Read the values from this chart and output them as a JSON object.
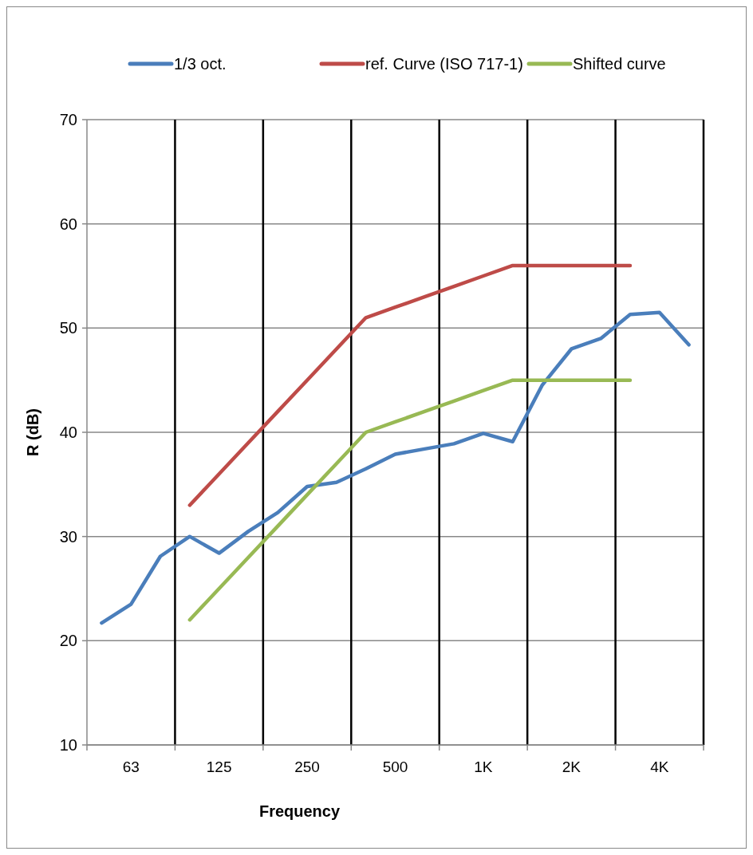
{
  "chart_data": {
    "type": "line",
    "xlabel": "Frequency",
    "ylabel": "R (dB)",
    "categories": [
      null,
      "63",
      null,
      null,
      "125",
      null,
      null,
      "250",
      null,
      null,
      "500",
      null,
      null,
      "1K",
      null,
      null,
      "2K",
      null,
      null,
      "4K",
      null
    ],
    "series": [
      {
        "name": "1/3 oct.",
        "color": "#4a7ebb",
        "values": [
          21.7,
          23.5,
          28.1,
          30.0,
          28.4,
          30.5,
          32.3,
          34.8,
          35.2,
          36.5,
          37.9,
          38.4,
          38.9,
          39.9,
          39.1,
          44.5,
          48.0,
          49.0,
          51.3,
          51.5,
          48.4
        ]
      },
      {
        "name": "ref. Curve (ISO 717-1)",
        "color": "#be4b48",
        "values": [
          null,
          null,
          null,
          33,
          36,
          39,
          42,
          45,
          48,
          51,
          52,
          53,
          54,
          55,
          56,
          56,
          56,
          56,
          56,
          null,
          null
        ]
      },
      {
        "name": "Shifted curve",
        "color": "#98b954",
        "values": [
          null,
          null,
          null,
          22,
          25,
          28,
          31,
          34,
          37,
          40,
          41,
          42,
          43,
          44,
          45,
          45,
          45,
          45,
          45,
          null,
          null
        ]
      }
    ],
    "ylim": [
      10,
      70
    ],
    "yticks": [
      10,
      20,
      30,
      40,
      50,
      60,
      70
    ],
    "grid": true,
    "legend": "top",
    "line_style": "solid",
    "marker": "none"
  }
}
